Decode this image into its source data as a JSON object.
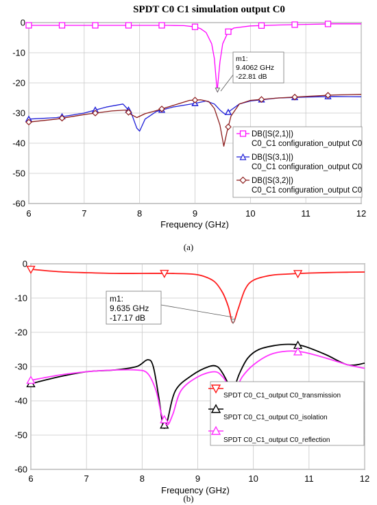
{
  "chart_data": [
    {
      "panel": "a",
      "type": "line",
      "title": "SPDT C0 C1 simulation output C0",
      "xlabel": "Frequency (GHz)",
      "ylabel": "",
      "xlim": [
        6,
        12
      ],
      "ylim": [
        -60,
        0
      ],
      "xticks": [
        6,
        7,
        8,
        9,
        10,
        11,
        12
      ],
      "yticks": [
        0,
        -10,
        -20,
        -30,
        -40,
        -50,
        -60
      ],
      "grid": true,
      "legend_position": "bottom-right",
      "caption": "(a)",
      "marker": {
        "label": "m1:",
        "freq": "9.4062 GHz",
        "value": "-22.81 dB",
        "x": 9.4062,
        "y": -22.81
      },
      "series": [
        {
          "name": "DB(|S(2,1)|)",
          "name2": "C0_C1 configuration_output C0",
          "color": "#ff00ff",
          "symbol": "square",
          "x": [
            6,
            6.5,
            7,
            7.5,
            8,
            8.5,
            8.8,
            9.0,
            9.1,
            9.2,
            9.3,
            9.35,
            9.4,
            9.45,
            9.5,
            9.6,
            9.7,
            10,
            10.5,
            11,
            11.5,
            12
          ],
          "y": [
            -0.9,
            -0.9,
            -0.9,
            -0.9,
            -0.9,
            -0.9,
            -1.0,
            -1.4,
            -2.0,
            -3.3,
            -7.0,
            -12.0,
            -22.8,
            -13.0,
            -7.0,
            -3.0,
            -1.8,
            -1.1,
            -0.8,
            -0.6,
            -0.4,
            -0.4
          ],
          "marker_x": [
            6.0,
            6.6,
            7.2,
            7.8,
            8.4,
            9.0,
            9.6,
            10.2,
            10.8,
            11.4
          ]
        },
        {
          "name": "DB(|S(3,1)|)",
          "name2": "C0_C1 configuration_output C0",
          "color": "#1f1fd8",
          "symbol": "triangle",
          "x": [
            6,
            6.5,
            7,
            7.4,
            7.7,
            7.85,
            7.95,
            8.0,
            8.1,
            8.3,
            8.6,
            9.0,
            9.2,
            9.35,
            9.45,
            9.55,
            9.65,
            9.8,
            10,
            10.5,
            11,
            11.5,
            12
          ],
          "y": [
            -32.0,
            -31.5,
            -30.0,
            -28.0,
            -27.0,
            -30.0,
            -35.0,
            -36.0,
            -32.0,
            -29.5,
            -28.0,
            -26.8,
            -26.0,
            -27.0,
            -29.0,
            -30.5,
            -29.0,
            -27.0,
            -26.0,
            -25.0,
            -24.7,
            -24.5,
            -24.6
          ],
          "marker_x": [
            6.0,
            6.6,
            7.2,
            7.8,
            8.4,
            9.0,
            9.6,
            10.2,
            10.8,
            11.4
          ]
        },
        {
          "name": "DB(|S(3,2)|)",
          "name2": "C0_C1 configuration_output C0",
          "color": "#8b1a1a",
          "symbol": "diamond",
          "x": [
            6,
            6.5,
            7,
            7.5,
            7.75,
            7.85,
            7.95,
            8.1,
            8.3,
            8.6,
            8.9,
            9.1,
            9.25,
            9.35,
            9.45,
            9.52,
            9.58,
            9.65,
            9.8,
            10,
            10.5,
            11,
            11.5,
            12
          ],
          "y": [
            -33.0,
            -32.0,
            -30.5,
            -29.3,
            -29.0,
            -30.5,
            -31.5,
            -30.2,
            -29.2,
            -27.5,
            -25.8,
            -25.6,
            -26.2,
            -28.5,
            -34.0,
            -41.0,
            -36.0,
            -31.0,
            -27.0,
            -25.8,
            -25.0,
            -24.5,
            -24.0,
            -23.8
          ],
          "marker_x": [
            6.0,
            6.6,
            7.2,
            7.8,
            8.4,
            9.0,
            9.6,
            10.2,
            10.8,
            11.4
          ]
        }
      ]
    },
    {
      "panel": "b",
      "type": "line",
      "title": "",
      "xlabel": "Frequency (GHz)",
      "ylabel": "",
      "xlim": [
        6,
        12
      ],
      "ylim": [
        -60,
        0
      ],
      "xticks": [
        6,
        7,
        8,
        9,
        10,
        11,
        12
      ],
      "yticks": [
        0,
        -10,
        -20,
        -30,
        -40,
        -50,
        -60
      ],
      "grid": true,
      "legend_position": "bottom-right",
      "caption": "(b)",
      "marker": {
        "label": "m1:",
        "freq": "9.635 GHz",
        "value": "-17.17 dB",
        "x": 9.635,
        "y": -17.17
      },
      "series": [
        {
          "name": "SPDT C0_C1_output C0_transmission",
          "color": "#ff1a1a",
          "symbol": "triangle-down",
          "x": [
            6,
            6.5,
            7,
            7.5,
            8,
            8.5,
            8.9,
            9.1,
            9.3,
            9.45,
            9.55,
            9.63,
            9.72,
            9.85,
            10,
            10.3,
            10.6,
            11,
            11.5,
            12
          ],
          "y": [
            -1.6,
            -2.3,
            -2.6,
            -2.8,
            -2.8,
            -2.8,
            -3.0,
            -3.6,
            -5.2,
            -8.5,
            -12.5,
            -17.2,
            -13.5,
            -7.5,
            -4.8,
            -3.4,
            -3.0,
            -2.7,
            -2.5,
            -2.4
          ],
          "marker_x": [
            6.0,
            8.4,
            10.8
          ]
        },
        {
          "name": "SPDT C0_C1_output C0_isolation",
          "color": "#000000",
          "symbol": "triangle",
          "x": [
            6,
            6.5,
            7,
            7.5,
            7.9,
            8.1,
            8.2,
            8.3,
            8.38,
            8.45,
            8.6,
            8.9,
            9.2,
            9.35,
            9.45,
            9.55,
            9.63,
            9.75,
            9.9,
            10.1,
            10.4,
            10.65,
            10.9,
            11.3,
            11.7,
            12
          ],
          "y": [
            -35.0,
            -33.0,
            -31.5,
            -31.0,
            -30.0,
            -28.0,
            -30.0,
            -39.0,
            -47.5,
            -46.0,
            -37.0,
            -32.5,
            -30.0,
            -30.0,
            -32.0,
            -35.0,
            -37.0,
            -32.0,
            -27.5,
            -25.0,
            -23.8,
            -23.5,
            -24.0,
            -26.5,
            -29.5,
            -29.0
          ],
          "marker_x": [
            6.0,
            8.4,
            10.8
          ]
        },
        {
          "name": "SPDT C0_C1_output C0_reflection",
          "color": "#ff33ff",
          "symbol": "triangle",
          "x": [
            6,
            6.5,
            7,
            7.5,
            7.9,
            8.1,
            8.25,
            8.35,
            8.45,
            8.55,
            8.7,
            9.0,
            9.3,
            9.45,
            9.55,
            9.65,
            9.8,
            10.0,
            10.3,
            10.6,
            10.9,
            11.3,
            11.7,
            12
          ],
          "y": [
            -34.0,
            -32.5,
            -31.5,
            -31.0,
            -31.0,
            -32.0,
            -37.0,
            -44.0,
            -47.0,
            -44.0,
            -37.0,
            -33.0,
            -31.5,
            -33.0,
            -35.5,
            -37.5,
            -33.0,
            -29.5,
            -26.5,
            -25.5,
            -25.8,
            -27.5,
            -29.5,
            -30.5
          ],
          "marker_x": [
            6.0,
            8.4,
            10.8
          ]
        }
      ]
    }
  ]
}
